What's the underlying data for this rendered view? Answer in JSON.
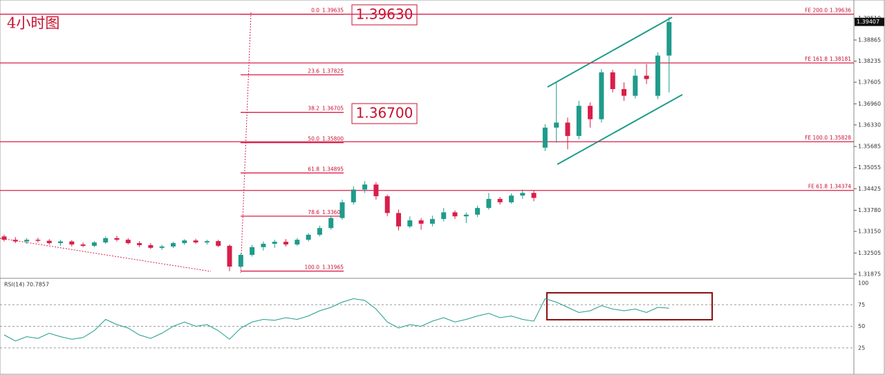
{
  "chart_data": {
    "type": "candlestick",
    "title": "4小时图",
    "ylim": [
      1.3177,
      1.4006
    ],
    "yticks": [
      {
        "value": 1.3951,
        "label": "1.39510"
      },
      1.38865,
      1.38235,
      1.37605,
      {
        "value": 1.3696,
        "label": "1.36960"
      },
      {
        "value": 1.3633,
        "label": "1.36330"
      },
      1.35685,
      1.35055,
      1.34425,
      {
        "value": 1.3378,
        "label": "1.33780"
      },
      {
        "value": 1.3315,
        "label": "1.33150"
      },
      1.32505,
      1.31875
    ],
    "up_color": "#1f9b8b",
    "down_color": "#d91e4a",
    "ohlc": [
      [
        1.33,
        1.3305,
        1.3285,
        1.329
      ],
      [
        1.329,
        1.3298,
        1.328,
        1.3285
      ],
      [
        1.3285,
        1.3295,
        1.3278,
        1.329
      ],
      [
        1.329,
        1.3296,
        1.3282,
        1.3287
      ],
      [
        1.3287,
        1.3292,
        1.3275,
        1.328
      ],
      [
        1.328,
        1.329,
        1.3272,
        1.3285
      ],
      [
        1.3285,
        1.3289,
        1.327,
        1.3276
      ],
      [
        1.3276,
        1.3282,
        1.3268,
        1.3272
      ],
      [
        1.3272,
        1.3286,
        1.3268,
        1.3282
      ],
      [
        1.3282,
        1.33,
        1.3278,
        1.3295
      ],
      [
        1.3295,
        1.3302,
        1.3285,
        1.329
      ],
      [
        1.329,
        1.3295,
        1.3276,
        1.328
      ],
      [
        1.328,
        1.3286,
        1.3268,
        1.3274
      ],
      [
        1.3274,
        1.328,
        1.3262,
        1.3266
      ],
      [
        1.3266,
        1.3275,
        1.326,
        1.327
      ],
      [
        1.327,
        1.3284,
        1.3266,
        1.328
      ],
      [
        1.328,
        1.3292,
        1.3275,
        1.3288
      ],
      [
        1.3288,
        1.3293,
        1.3278,
        1.3282
      ],
      [
        1.3282,
        1.329,
        1.3276,
        1.3286
      ],
      [
        1.3286,
        1.329,
        1.3268,
        1.3272
      ],
      [
        1.3272,
        1.3276,
        1.3196,
        1.321
      ],
      [
        1.321,
        1.325,
        1.3205,
        1.3245
      ],
      [
        1.3245,
        1.3275,
        1.324,
        1.3268
      ],
      [
        1.3268,
        1.3285,
        1.3258,
        1.3278
      ],
      [
        1.3278,
        1.329,
        1.3266,
        1.3284
      ],
      [
        1.3284,
        1.3292,
        1.327,
        1.3276
      ],
      [
        1.3276,
        1.3295,
        1.3272,
        1.329
      ],
      [
        1.329,
        1.331,
        1.3285,
        1.3305
      ],
      [
        1.3305,
        1.3332,
        1.33,
        1.3325
      ],
      [
        1.3325,
        1.3362,
        1.332,
        1.3355
      ],
      [
        1.3355,
        1.341,
        1.335,
        1.3402
      ],
      [
        1.3402,
        1.345,
        1.3395,
        1.344
      ],
      [
        1.344,
        1.3465,
        1.343,
        1.3455
      ],
      [
        1.3455,
        1.3462,
        1.341,
        1.342
      ],
      [
        1.342,
        1.3425,
        1.336,
        1.337
      ],
      [
        1.337,
        1.338,
        1.3318,
        1.333
      ],
      [
        1.333,
        1.336,
        1.3325,
        1.3348
      ],
      [
        1.3348,
        1.3355,
        1.332,
        1.3338
      ],
      [
        1.3338,
        1.3362,
        1.333,
        1.3352
      ],
      [
        1.3352,
        1.3385,
        1.3345,
        1.3372
      ],
      [
        1.3372,
        1.3378,
        1.3352,
        1.336
      ],
      [
        1.336,
        1.3372,
        1.334,
        1.3365
      ],
      [
        1.3365,
        1.3392,
        1.3358,
        1.3385
      ],
      [
        1.3385,
        1.343,
        1.338,
        1.3412
      ],
      [
        1.3412,
        1.3418,
        1.3395,
        1.3402
      ],
      [
        1.3402,
        1.3428,
        1.3398,
        1.3422
      ],
      [
        1.3422,
        1.344,
        1.3412,
        1.343
      ],
      [
        1.343,
        1.3438,
        1.3405,
        1.3415
      ],
      [
        1.3565,
        1.3635,
        1.3555,
        1.3625
      ],
      [
        1.3625,
        1.376,
        1.358,
        1.364
      ],
      [
        1.364,
        1.3655,
        1.356,
        1.36
      ],
      [
        1.36,
        1.3705,
        1.359,
        1.369
      ],
      [
        1.369,
        1.37,
        1.3625,
        1.365
      ],
      [
        1.365,
        1.38,
        1.364,
        1.379
      ],
      [
        1.379,
        1.3798,
        1.373,
        1.374
      ],
      [
        1.374,
        1.376,
        1.3705,
        1.372
      ],
      [
        1.372,
        1.38,
        1.3712,
        1.378
      ],
      [
        1.378,
        1.3815,
        1.3755,
        1.377
      ],
      [
        1.372,
        1.385,
        1.371,
        1.384
      ],
      [
        1.384,
        1.3955,
        1.373,
        1.394
      ]
    ],
    "last_price": 1.39407,
    "fe_levels": [
      {
        "ratio": "FE 200.0",
        "value": 1.39636
      },
      {
        "ratio": "FE 161.8",
        "value": 1.38181
      },
      {
        "ratio": "FE 100.0",
        "value": 1.35828
      },
      {
        "ratio": "FE 61.8",
        "value": 1.34374
      }
    ],
    "fib_levels": [
      {
        "ratio": "0.0",
        "value": 1.39635
      },
      {
        "ratio": "23.6",
        "value": 1.37825
      },
      {
        "ratio": "38.2",
        "value": 1.36705
      },
      {
        "ratio": "50.0",
        "value": 1.358,
        "value_label": "1.35800"
      },
      {
        "ratio": "61.8",
        "value": 1.34895
      },
      {
        "ratio": "78.6",
        "value": 1.33606
      },
      {
        "ratio": "100.0",
        "value": 1.31965
      }
    ],
    "annotations": [
      "1.39630",
      "1.36700"
    ],
    "rsi": {
      "label": "RSI(14) 70.7857",
      "color": "#1f9b8b",
      "ylim": [
        0,
        100
      ],
      "yticks": [
        100,
        75,
        50,
        25
      ],
      "values": [
        40,
        33,
        38,
        36,
        42,
        38,
        35,
        37,
        45,
        58,
        52,
        48,
        40,
        36,
        42,
        50,
        55,
        50,
        52,
        45,
        35,
        48,
        55,
        58,
        57,
        60,
        58,
        62,
        68,
        72,
        78,
        82,
        80,
        70,
        55,
        48,
        52,
        50,
        56,
        60,
        55,
        58,
        62,
        65,
        60,
        62,
        58,
        56,
        82,
        78,
        72,
        66,
        68,
        74,
        70,
        68,
        70,
        66,
        72,
        71
      ]
    }
  }
}
